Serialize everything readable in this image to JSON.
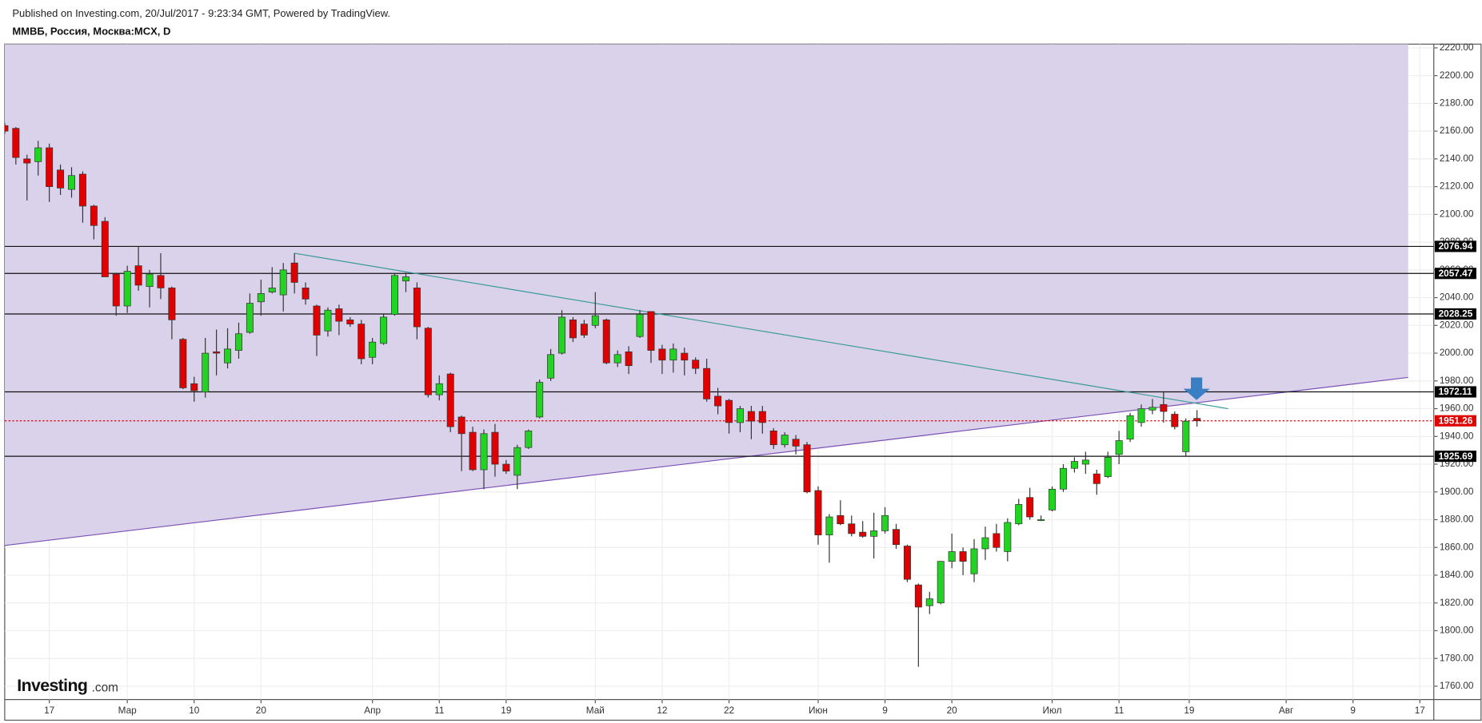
{
  "chart_data": {
    "type": "candlestick",
    "header": "Published on Investing.com, 20/Jul/2017 - 9:23:34 GMT, Powered by TradingView.",
    "title": "ММВБ, Россия, Москва:MCX, D",
    "logo": "Investing",
    "logo_suffix": ".com",
    "open": [
      2164,
      2162,
      2140,
      2138,
      2148,
      2132,
      2118,
      2129,
      2106,
      2095,
      2057,
      2034,
      2063,
      2048,
      2056,
      2047,
      2010,
      1978,
      1972,
      2001,
      1993,
      2002,
      2015,
      2037,
      2044,
      2042,
      2065,
      2047,
      2034,
      2016,
      2032,
      2024,
      2021,
      1997,
      2007,
      2028,
      2052,
      2047,
      2018,
      1970,
      1985,
      1954,
      1943,
      1916,
      1943,
      1920,
      1912,
      1932,
      1954,
      1982,
      2000,
      2024,
      2021,
      2020,
      2024,
      1993,
      2001,
      2012,
      2030,
      2003,
      1995,
      2000,
      1995,
      1989,
      1969,
      1966,
      1950,
      1958,
      1958,
      1944,
      1934,
      1938,
      1934,
      1901,
      1869,
      1883,
      1877,
      1871,
      1868,
      1872,
      1873,
      1861,
      1833,
      1818,
      1820,
      1850,
      1857,
      1841,
      1859,
      1870,
      1857,
      1877,
      1896,
      1880,
      1887,
      1902,
      1917,
      1920,
      1913,
      1911,
      1927,
      1938,
      1950,
      1959,
      1963,
      1956,
      1929,
      1953
    ],
    "high": [
      2166,
      2163,
      2143,
      2153,
      2151,
      2136,
      2134,
      2131,
      2107,
      2098,
      2058,
      2063,
      2077,
      2060,
      2072,
      2048,
      2011,
      1983,
      2011,
      2017,
      2018,
      2022,
      2043,
      2053,
      2062,
      2065,
      2072,
      2051,
      2035,
      2033,
      2035,
      2026,
      2024,
      2011,
      2028,
      2057,
      2058,
      2051,
      2019,
      1984,
      1986,
      1955,
      1947,
      1945,
      1949,
      1923,
      1934,
      1945,
      1981,
      2003,
      2031,
      2026,
      2024,
      2044,
      2025,
      2002,
      2005,
      2031,
      2030,
      2006,
      2007,
      2004,
      1997,
      1996,
      1975,
      1967,
      1962,
      1962,
      1962,
      1946,
      1943,
      1941,
      1936,
      1904,
      1884,
      1894,
      1883,
      1879,
      1885,
      1889,
      1877,
      1862,
      1834,
      1828,
      1850,
      1870,
      1860,
      1866,
      1875,
      1877,
      1881,
      1895,
      1903,
      1883,
      1904,
      1920,
      1925,
      1929,
      1916,
      1929,
      1944,
      1957,
      1963,
      1967,
      1972,
      1958,
      1953,
      1959
    ],
    "low": [
      2158,
      2136,
      2110,
      2128,
      2109,
      2114,
      2112,
      2094,
      2082,
      2055,
      2027,
      2029,
      2045,
      2033,
      2039,
      2010,
      1974,
      1965,
      1968,
      1984,
      1989,
      1996,
      2014,
      2027,
      2043,
      2030,
      2043,
      2035,
      1998,
      2012,
      2013,
      2019,
      1992,
      1992,
      2006,
      2027,
      2044,
      2010,
      1968,
      1966,
      1943,
      1915,
      1915,
      1902,
      1911,
      1913,
      1902,
      1931,
      1953,
      1980,
      1999,
      2008,
      2011,
      2018,
      1992,
      1990,
      1985,
      2011,
      1993,
      1985,
      1986,
      1984,
      1985,
      1965,
      1956,
      1942,
      1943,
      1938,
      1942,
      1931,
      1932,
      1927,
      1899,
      1862,
      1849,
      1876,
      1868,
      1867,
      1852,
      1870,
      1859,
      1835,
      1774,
      1812,
      1819,
      1845,
      1840,
      1835,
      1851,
      1857,
      1850,
      1876,
      1880,
      1879,
      1886,
      1900,
      1914,
      1913,
      1898,
      1910,
      1920,
      1936,
      1947,
      1956,
      1950,
      1945,
      1926,
      1947
    ],
    "close": [
      2160,
      2141,
      2137,
      2148,
      2120,
      2119,
      2128,
      2106,
      2092,
      2055,
      2034,
      2059,
      2049,
      2057,
      2047,
      2024,
      1975,
      1973,
      2000,
      2000,
      2003,
      2014,
      2036,
      2043,
      2047,
      2060,
      2051,
      2039,
      2013,
      2031,
      2023,
      2021,
      1996,
      2008,
      2026,
      2056,
      2055,
      2019,
      1970,
      1978,
      1947,
      1942,
      1916,
      1942,
      1920,
      1915,
      1932,
      1944,
      1979,
      1999,
      2026,
      2011,
      2013,
      2027,
      1993,
      1999,
      1991,
      2028,
      2002,
      1995,
      2003,
      1995,
      1989,
      1967,
      1962,
      1950,
      1960,
      1951,
      1950,
      1934,
      1941,
      1933,
      1900,
      1869,
      1882,
      1877,
      1870,
      1868,
      1872,
      1883,
      1862,
      1837,
      1817,
      1823,
      1850,
      1857,
      1850,
      1859,
      1867,
      1860,
      1878,
      1891,
      1882,
      1880,
      1902,
      1917,
      1922,
      1923,
      1906,
      1925,
      1937,
      1955,
      1960,
      1961,
      1958,
      1947,
      1951,
      1951.26
    ],
    "up_color": "#22d422",
    "down_color": "#e00000",
    "xlim": [
      0,
      128.25
    ],
    "xticks": [
      {
        "value": 4,
        "label": "17"
      },
      {
        "value": 11,
        "label": "Мар"
      },
      {
        "value": 17,
        "label": "10"
      },
      {
        "value": 23,
        "label": "20"
      },
      {
        "value": 33,
        "label": "Апр"
      },
      {
        "value": 39,
        "label": "11"
      },
      {
        "value": 45,
        "label": "19"
      },
      {
        "value": 53,
        "label": "Май"
      },
      {
        "value": 59,
        "label": "12"
      },
      {
        "value": 65,
        "label": "22"
      },
      {
        "value": 73,
        "label": "Июн"
      },
      {
        "value": 79,
        "label": "9"
      },
      {
        "value": 85,
        "label": "20"
      },
      {
        "value": 94,
        "label": "Июл"
      },
      {
        "value": 100,
        "label": "11"
      },
      {
        "value": 106.3,
        "label": "19"
      },
      {
        "value": 115,
        "label": "Авг"
      },
      {
        "value": 121,
        "label": "9"
      },
      {
        "value": 127,
        "label": "17"
      }
    ],
    "ylim": [
      1750.4,
      2222.7
    ],
    "yticks": [
      {
        "value": 1760,
        "label": "1760.00"
      },
      {
        "value": 1780,
        "label": "1780.00"
      },
      {
        "value": 1800,
        "label": "1800.00"
      },
      {
        "value": 1820,
        "label": "1820.00"
      },
      {
        "value": 1840,
        "label": "1840.00"
      },
      {
        "value": 1860,
        "label": "1860.00"
      },
      {
        "value": 1880,
        "label": "1880.00"
      },
      {
        "value": 1900,
        "label": "1900.00"
      },
      {
        "value": 1920,
        "label": "1920.00"
      },
      {
        "value": 1940,
        "label": "1940.00"
      },
      {
        "value": 1960,
        "label": "1960.00"
      },
      {
        "value": 1980,
        "label": "1980.00"
      },
      {
        "value": 2000,
        "label": "2000.00"
      },
      {
        "value": 2020,
        "label": "2020.00"
      },
      {
        "value": 2040,
        "label": "2040.00"
      },
      {
        "value": 2060,
        "label": "2060.00"
      },
      {
        "value": 2080,
        "label": "2080.00"
      },
      {
        "value": 2100,
        "label": "2100.00"
      },
      {
        "value": 2120,
        "label": "2120.00"
      },
      {
        "value": 2140,
        "label": "2140.00"
      },
      {
        "value": 2160,
        "label": "2160.00"
      },
      {
        "value": 2180,
        "label": "2180.00"
      },
      {
        "value": 2200,
        "label": "2200.00"
      },
      {
        "value": 2220,
        "label": "2220.00"
      }
    ],
    "grid": true,
    "levels": [
      2076.94,
      2057.47,
      2028.25,
      1972.11,
      1925.69
    ],
    "trendline": {
      "points": [
        [
          26,
          2072
        ],
        [
          109.8,
          1960
        ]
      ],
      "color": "#3a9a9a"
    },
    "channel": {
      "points": [
        [
          0,
          1861.4
        ],
        [
          125.95,
          1982.5
        ]
      ],
      "color": "#7b4fb5",
      "fill": "#d9d2ea"
    }
  }
}
